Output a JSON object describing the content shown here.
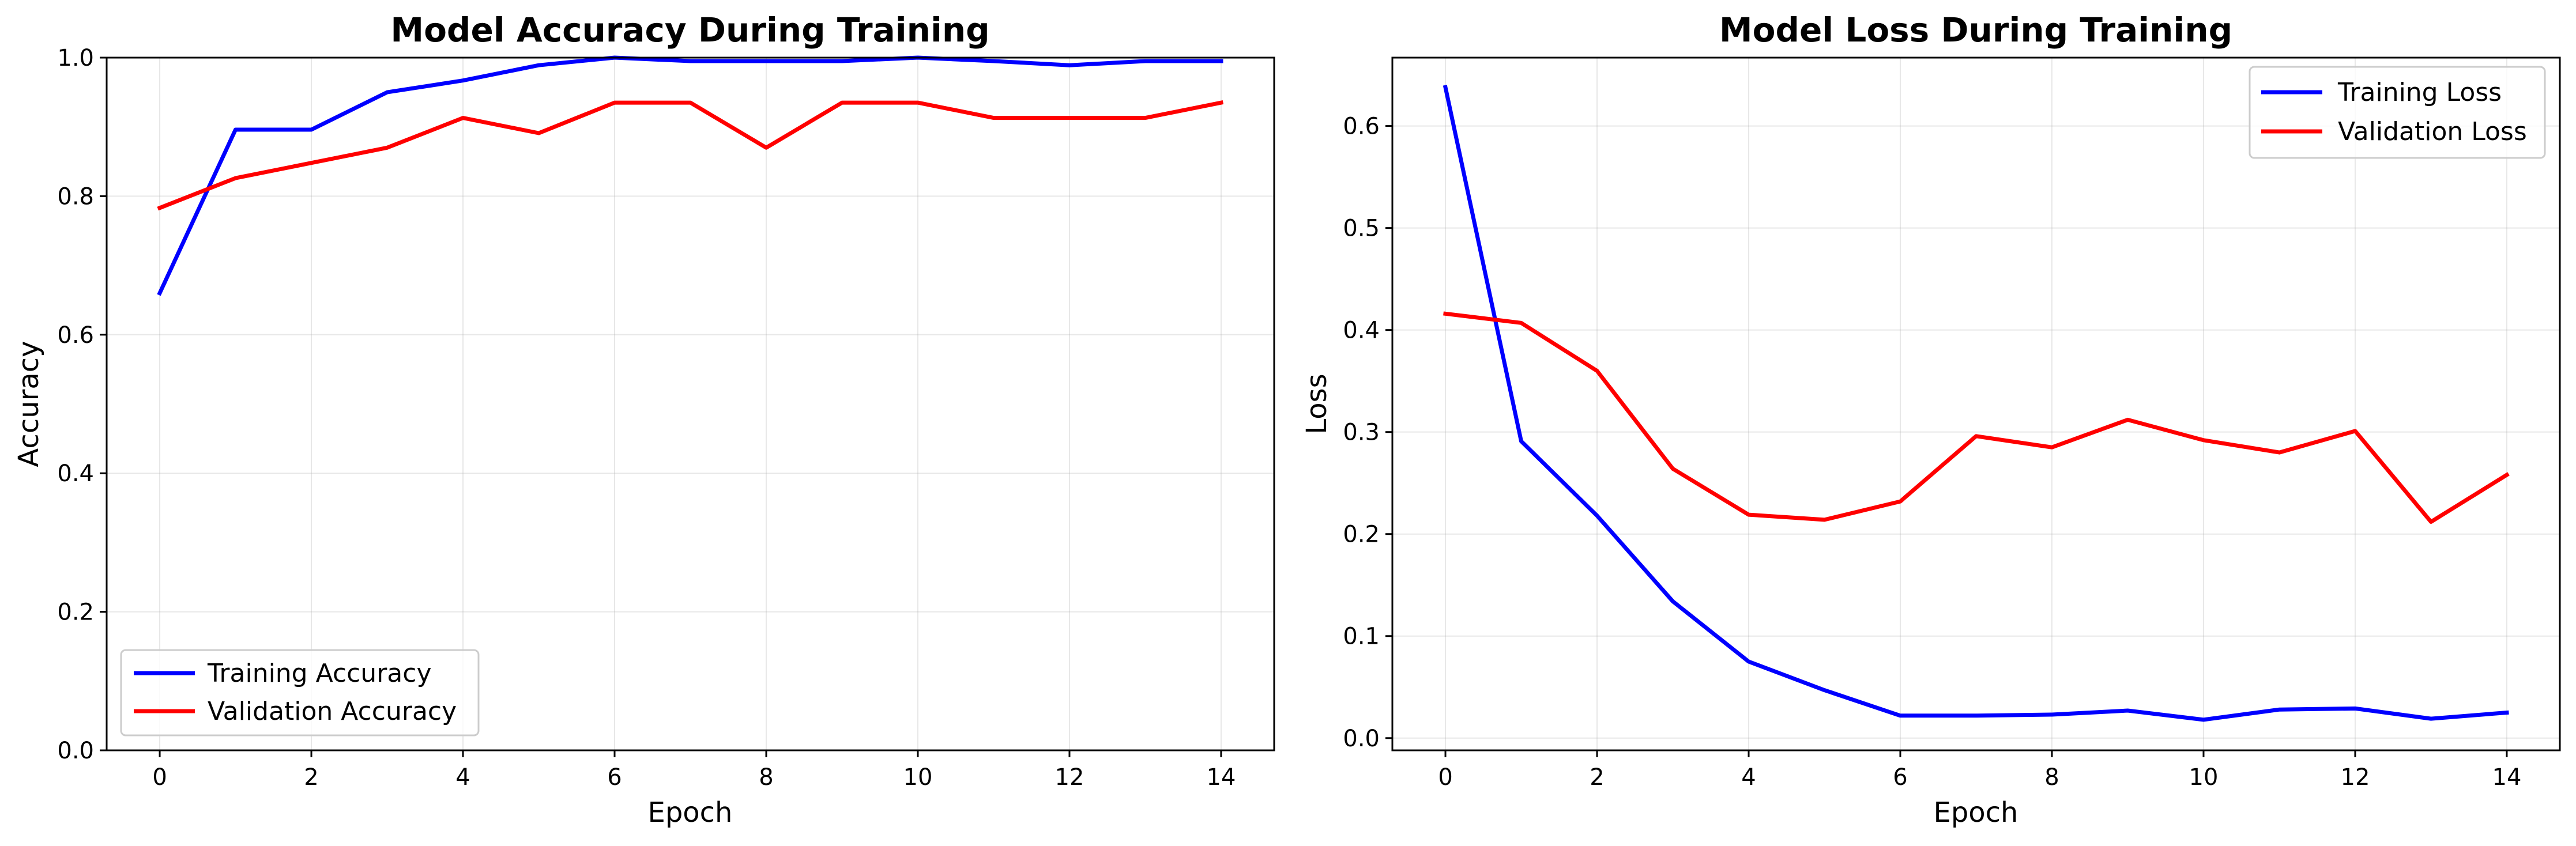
{
  "chart_data": [
    {
      "type": "line",
      "title": "Model Accuracy During Training",
      "xlabel": "Epoch",
      "ylabel": "Accuracy",
      "xlim": [
        -0.7,
        14.7
      ],
      "ylim": [
        0.0,
        1.0
      ],
      "xticks": [
        0,
        2,
        4,
        6,
        8,
        10,
        12,
        14
      ],
      "yticks": [
        0.0,
        0.2,
        0.4,
        0.6,
        0.8,
        1.0
      ],
      "xtick_labels": [
        "0",
        "2",
        "4",
        "6",
        "8",
        "10",
        "12",
        "14"
      ],
      "ytick_labels": [
        "0.0",
        "0.2",
        "0.4",
        "0.6",
        "0.8",
        "1.0"
      ],
      "grid": true,
      "legend_position": "lower-left",
      "x": [
        0,
        1,
        2,
        3,
        4,
        5,
        6,
        7,
        8,
        9,
        10,
        11,
        12,
        13,
        14
      ],
      "series": [
        {
          "name": "Training Accuracy",
          "color": "#0000ff",
          "values": [
            0.66,
            0.896,
            0.896,
            0.95,
            0.967,
            0.989,
            1.0,
            0.995,
            0.995,
            0.995,
            1.0,
            0.995,
            0.989,
            0.995,
            0.995
          ]
        },
        {
          "name": "Validation Accuracy",
          "color": "#ff0000",
          "values": [
            0.783,
            0.826,
            0.848,
            0.87,
            0.913,
            0.891,
            0.935,
            0.935,
            0.87,
            0.935,
            0.935,
            0.913,
            0.913,
            0.913,
            0.935
          ]
        }
      ]
    },
    {
      "type": "line",
      "title": "Model Loss During Training",
      "xlabel": "Epoch",
      "ylabel": "Loss",
      "xlim": [
        -0.7,
        14.7
      ],
      "ylim": [
        -0.012,
        0.667
      ],
      "xticks": [
        0,
        2,
        4,
        6,
        8,
        10,
        12,
        14
      ],
      "yticks": [
        0.0,
        0.1,
        0.2,
        0.3,
        0.4,
        0.5,
        0.6
      ],
      "xtick_labels": [
        "0",
        "2",
        "4",
        "6",
        "8",
        "10",
        "12",
        "14"
      ],
      "ytick_labels": [
        "0.0",
        "0.1",
        "0.2",
        "0.3",
        "0.4",
        "0.5",
        "0.6"
      ],
      "grid": true,
      "legend_position": "upper-right",
      "x": [
        0,
        1,
        2,
        3,
        4,
        5,
        6,
        7,
        8,
        9,
        10,
        11,
        12,
        13,
        14
      ],
      "series": [
        {
          "name": "Training Loss",
          "color": "#0000ff",
          "values": [
            0.638,
            0.291,
            0.218,
            0.134,
            0.075,
            0.047,
            0.022,
            0.022,
            0.023,
            0.027,
            0.018,
            0.028,
            0.029,
            0.019,
            0.025
          ]
        },
        {
          "name": "Validation Loss",
          "color": "#ff0000",
          "values": [
            0.416,
            0.407,
            0.36,
            0.264,
            0.219,
            0.214,
            0.232,
            0.296,
            0.285,
            0.312,
            0.292,
            0.28,
            0.301,
            0.212,
            0.258
          ]
        }
      ]
    }
  ]
}
